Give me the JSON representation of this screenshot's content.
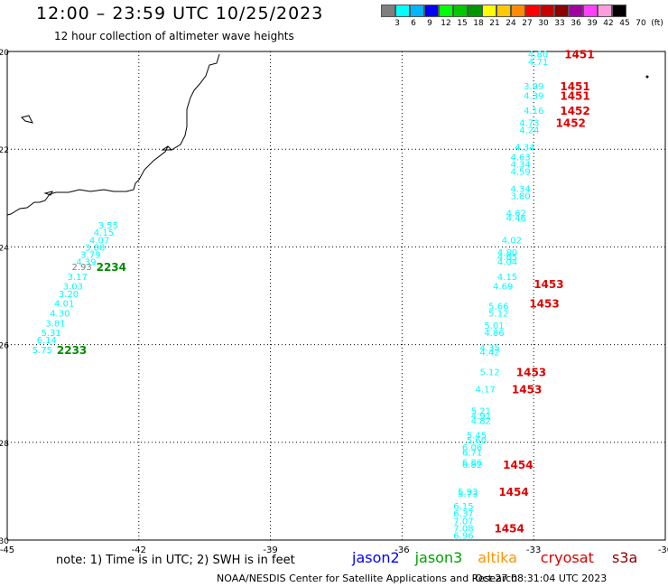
{
  "header": {
    "title": "12:00 – 23:59 UTC 10/25/2023",
    "subtitle": "12 hour collection of altimeter wave heights"
  },
  "colorbar": {
    "ticks": [
      "3",
      "6",
      "9",
      "12",
      "15",
      "18",
      "21",
      "24",
      "27",
      "30",
      "33",
      "36",
      "39",
      "42",
      "45",
      "70",
      "(ft)"
    ],
    "colors": [
      "#7f7f7f",
      "#00ffff",
      "#00b4ff",
      "#0000ff",
      "#00ff00",
      "#00c800",
      "#009600",
      "#ffff00",
      "#ffc800",
      "#ff8c00",
      "#ff0000",
      "#c80000",
      "#8c0000",
      "#a000a0",
      "#ff40ff",
      "#ff9cdc",
      "#000000"
    ]
  },
  "chart_data": {
    "type": "scatter",
    "xlim": [
      -45,
      -30
    ],
    "ylim": [
      -30,
      -20
    ],
    "x_ticks": [
      "-45",
      "-42",
      "-39",
      "-36",
      "-33",
      "-30"
    ],
    "y_ticks": [
      "-20",
      "-22",
      "-24",
      "-26",
      "-28",
      "-30"
    ],
    "grid": true,
    "series": [
      {
        "name": "jason3",
        "color": "#00ffff",
        "points": [
          {
            "lon": -42.7,
            "lat": -23.55,
            "label": "3.55"
          },
          {
            "lon": -42.8,
            "lat": -23.7,
            "label": "4.15"
          },
          {
            "lon": -42.9,
            "lat": -23.85,
            "label": "4.07"
          },
          {
            "lon": -43.0,
            "lat": -24.0,
            "label": "3.88"
          },
          {
            "lon": -43.1,
            "lat": -24.15,
            "label": "3.79"
          },
          {
            "lon": -43.2,
            "lat": -24.3,
            "label": "4.39"
          },
          {
            "lon": -43.3,
            "lat": -24.4,
            "label": "2.93",
            "color": "#7f7f7f"
          },
          {
            "lon": -43.4,
            "lat": -24.6,
            "label": "3.17"
          },
          {
            "lon": -43.5,
            "lat": -24.8,
            "label": "3.03"
          },
          {
            "lon": -43.6,
            "lat": -24.95,
            "label": "3.20"
          },
          {
            "lon": -43.7,
            "lat": -25.15,
            "label": "4.01"
          },
          {
            "lon": -43.8,
            "lat": -25.35,
            "label": "4.30"
          },
          {
            "lon": -43.9,
            "lat": -25.55,
            "label": "3.81"
          },
          {
            "lon": -44.0,
            "lat": -25.75,
            "label": "5.31"
          },
          {
            "lon": -44.1,
            "lat": -25.9,
            "label": "6.14"
          },
          {
            "lon": -44.2,
            "lat": -26.1,
            "label": "5.75"
          }
        ],
        "pass_labels": [
          {
            "lon": -43.3,
            "lat": -24.4,
            "text": "2234"
          },
          {
            "lon": -44.2,
            "lat": -26.1,
            "text": "2233"
          }
        ]
      },
      {
        "name": "cryosat",
        "color": "#00ffff",
        "points": [
          {
            "lon": -32.9,
            "lat": -20.05,
            "label": "4.80"
          },
          {
            "lon": -32.9,
            "lat": -20.2,
            "label": "4.71"
          },
          {
            "lon": -33.0,
            "lat": -20.7,
            "label": "3.99"
          },
          {
            "lon": -33.0,
            "lat": -20.9,
            "label": "4.39"
          },
          {
            "lon": -33.0,
            "lat": -21.2,
            "label": "4.16"
          },
          {
            "lon": -33.1,
            "lat": -21.45,
            "label": "4.73"
          },
          {
            "lon": -33.1,
            "lat": -21.6,
            "label": "4.24"
          },
          {
            "lon": -33.2,
            "lat": -21.95,
            "label": "4.34"
          },
          {
            "lon": -33.3,
            "lat": -22.15,
            "label": "4.63"
          },
          {
            "lon": -33.3,
            "lat": -22.3,
            "label": "4.34"
          },
          {
            "lon": -33.3,
            "lat": -22.45,
            "label": "4.59"
          },
          {
            "lon": -33.3,
            "lat": -22.8,
            "label": "4.34"
          },
          {
            "lon": -33.3,
            "lat": -22.95,
            "label": "3.80"
          },
          {
            "lon": -33.4,
            "lat": -23.3,
            "label": "4.62"
          },
          {
            "lon": -33.4,
            "lat": -23.4,
            "label": "4.46"
          },
          {
            "lon": -33.5,
            "lat": -23.85,
            "label": "4.02"
          },
          {
            "lon": -33.6,
            "lat": -24.1,
            "label": "4.80"
          },
          {
            "lon": -33.6,
            "lat": -24.2,
            "label": "4.65"
          },
          {
            "lon": -33.6,
            "lat": -24.3,
            "label": "4.04"
          },
          {
            "lon": -33.6,
            "lat": -24.6,
            "label": "4.15"
          },
          {
            "lon": -33.7,
            "lat": -24.8,
            "label": "4.69"
          },
          {
            "lon": -33.8,
            "lat": -25.2,
            "label": "5.66"
          },
          {
            "lon": -33.8,
            "lat": -25.35,
            "label": "5.12"
          },
          {
            "lon": -33.9,
            "lat": -25.6,
            "label": "5.01"
          },
          {
            "lon": -33.9,
            "lat": -25.75,
            "label": "4.86"
          },
          {
            "lon": -34.0,
            "lat": -26.05,
            "label": "4.35"
          },
          {
            "lon": -34.0,
            "lat": -26.15,
            "label": "4.42"
          },
          {
            "lon": -34.0,
            "lat": -26.55,
            "label": "5.12"
          },
          {
            "lon": -34.1,
            "lat": -26.9,
            "label": "4.17"
          },
          {
            "lon": -34.2,
            "lat": -27.35,
            "label": "5.21"
          },
          {
            "lon": -34.2,
            "lat": -27.45,
            "label": "4.91"
          },
          {
            "lon": -34.2,
            "lat": -27.55,
            "label": "4.82"
          },
          {
            "lon": -34.3,
            "lat": -27.85,
            "label": "5.45"
          },
          {
            "lon": -34.3,
            "lat": -27.95,
            "label": "5.60"
          },
          {
            "lon": -34.4,
            "lat": -28.1,
            "label": "6.06"
          },
          {
            "lon": -34.4,
            "lat": -28.2,
            "label": "6.71"
          },
          {
            "lon": -34.4,
            "lat": -28.4,
            "label": "6.86"
          },
          {
            "lon": -34.4,
            "lat": -28.45,
            "label": "6.82"
          },
          {
            "lon": -34.5,
            "lat": -29.0,
            "label": "5.93"
          },
          {
            "lon": -34.5,
            "lat": -29.05,
            "label": "5.73"
          },
          {
            "lon": -34.6,
            "lat": -29.3,
            "label": "6.15"
          },
          {
            "lon": -34.6,
            "lat": -29.45,
            "label": "6.37"
          },
          {
            "lon": -34.6,
            "lat": -29.6,
            "label": "7.07"
          },
          {
            "lon": -34.6,
            "lat": -29.75,
            "label": "7.08"
          },
          {
            "lon": -34.6,
            "lat": -29.9,
            "label": "6.96"
          }
        ],
        "pass_labels": [
          {
            "lon": -32.3,
            "lat": -20.05,
            "text": "1451"
          },
          {
            "lon": -32.4,
            "lat": -20.7,
            "text": "1451"
          },
          {
            "lon": -32.4,
            "lat": -20.9,
            "text": "1451"
          },
          {
            "lon": -32.4,
            "lat": -21.2,
            "text": "1452"
          },
          {
            "lon": -32.5,
            "lat": -21.45,
            "text": "1452"
          },
          {
            "lon": -33.0,
            "lat": -24.75,
            "text": "1453"
          },
          {
            "lon": -33.1,
            "lat": -25.15,
            "text": "1453"
          },
          {
            "lon": -33.4,
            "lat": -26.55,
            "text": "1453"
          },
          {
            "lon": -33.5,
            "lat": -26.9,
            "text": "1453"
          },
          {
            "lon": -33.7,
            "lat": -28.45,
            "text": "1454"
          },
          {
            "lon": -33.8,
            "lat": -29.0,
            "text": "1454"
          },
          {
            "lon": -33.9,
            "lat": -29.75,
            "text": "1454"
          }
        ]
      }
    ]
  },
  "footer": {
    "note": "note: 1) Time is in UTC; 2) SWH is in feet",
    "satellites": [
      {
        "name": "jason2",
        "color": "#0000ff"
      },
      {
        "name": "jason3",
        "color": "#00a000"
      },
      {
        "name": "altika",
        "color": "#ff9600"
      },
      {
        "name": "cryosat",
        "color": "#dc0000"
      },
      {
        "name": "s3a",
        "color": "#8c0000"
      }
    ],
    "credit": "NOAA/NESDIS Center for Satellite Applications and Research",
    "generated": "Oct 27 08:31:04 UTC 2023"
  }
}
